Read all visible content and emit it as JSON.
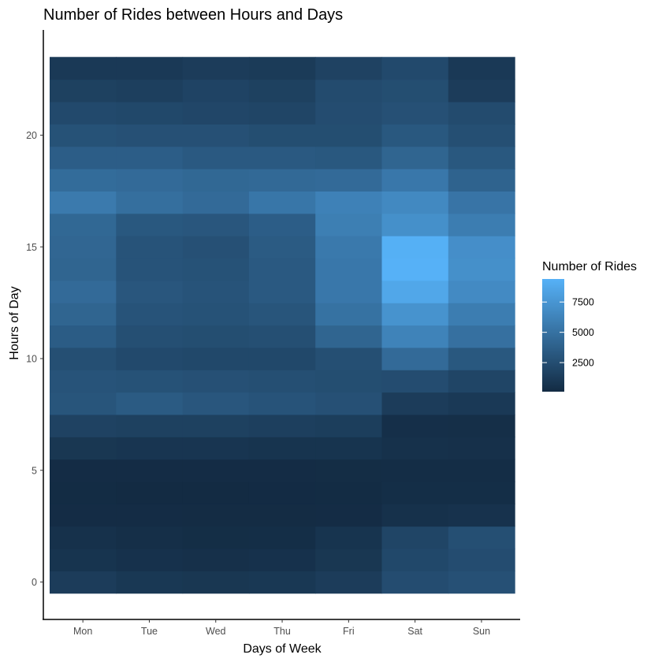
{
  "chart_data": {
    "type": "heatmap",
    "title": "Number of Rides between Hours and Days",
    "xlabel": "Days of Week",
    "ylabel": "Hours of Day",
    "x_categories": [
      "Mon",
      "Tue",
      "Wed",
      "Thu",
      "Fri",
      "Sat",
      "Sun"
    ],
    "y_values": [
      0,
      1,
      2,
      3,
      4,
      5,
      6,
      7,
      8,
      9,
      10,
      11,
      12,
      13,
      14,
      15,
      16,
      17,
      18,
      19,
      20,
      21,
      22,
      23
    ],
    "y_ticks": [
      0,
      5,
      10,
      15,
      20
    ],
    "ylim": [
      -2,
      24
    ],
    "values": [
      [
        1300,
        1000,
        900,
        1000,
        1300,
        2400,
        2700
      ],
      [
        700,
        550,
        450,
        550,
        900,
        2100,
        2400
      ],
      [
        500,
        350,
        280,
        300,
        700,
        1900,
        2600
      ],
      [
        200,
        180,
        170,
        170,
        200,
        500,
        600
      ],
      [
        150,
        120,
        120,
        130,
        150,
        300,
        300
      ],
      [
        200,
        180,
        190,
        200,
        220,
        250,
        250
      ],
      [
        900,
        800,
        800,
        700,
        700,
        500,
        450
      ],
      [
        1700,
        1600,
        1600,
        1500,
        1400,
        400,
        350
      ],
      [
        3000,
        3400,
        3100,
        2900,
        2700,
        1300,
        1100
      ],
      [
        2900,
        2800,
        2700,
        2600,
        2500,
        2400,
        1900
      ],
      [
        2600,
        2200,
        2100,
        2100,
        2600,
        4500,
        3200
      ],
      [
        3500,
        2600,
        2500,
        2600,
        4100,
        6200,
        4900
      ],
      [
        4100,
        2900,
        2800,
        3000,
        5000,
        7300,
        5800
      ],
      [
        4500,
        3100,
        2900,
        3300,
        5400,
        8700,
        6700
      ],
      [
        4100,
        2900,
        2800,
        3300,
        5400,
        9400,
        7100
      ],
      [
        4200,
        2900,
        2700,
        3400,
        5500,
        9300,
        7000
      ],
      [
        4300,
        3200,
        3100,
        3600,
        5900,
        7100,
        5800
      ],
      [
        5600,
        4800,
        4500,
        5300,
        6100,
        6600,
        5200
      ],
      [
        4600,
        4500,
        4300,
        4400,
        4500,
        5400,
        4000
      ],
      [
        3600,
        3600,
        3300,
        3300,
        3200,
        4100,
        3200
      ],
      [
        2800,
        2700,
        2700,
        2500,
        2500,
        3200,
        2600
      ],
      [
        2200,
        2100,
        2000,
        1900,
        2400,
        2700,
        2300
      ],
      [
        1600,
        1500,
        1800,
        1600,
        2300,
        2500,
        1300
      ],
      [
        1100,
        1100,
        1300,
        1200,
        1700,
        2200,
        1100
      ]
    ],
    "color_scale": {
      "low": "#132B43",
      "high": "#56B1F7",
      "min": 100,
      "max": 9400
    },
    "legend": {
      "title": "Number of Rides",
      "ticks": [
        2500,
        5000,
        7500
      ],
      "tick_labels": [
        "2500",
        "5000",
        "7500"
      ],
      "position": "right"
    },
    "grid": false
  }
}
